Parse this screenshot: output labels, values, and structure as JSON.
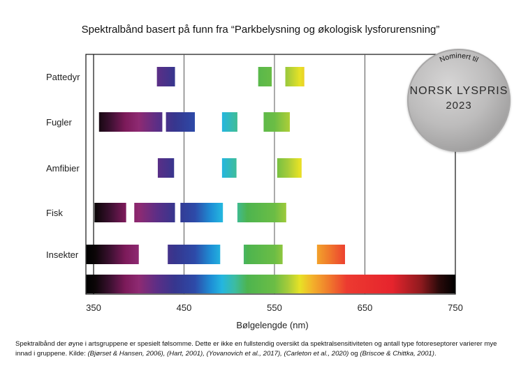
{
  "chart_data": {
    "type": "bar",
    "title": "Spektralbånd basert på funn fra “Parkbelysning og økologisk lysforurensning”",
    "xlabel": "Bølgelengde (nm)",
    "ylabel": "",
    "xlim": [
      350,
      750
    ],
    "x_ticks": [
      350,
      450,
      550,
      650,
      750
    ],
    "x_tick_labels": [
      "350",
      "450",
      "550",
      "650",
      "750"
    ],
    "grid_lines_x": [
      350,
      450,
      550,
      650
    ],
    "categories": [
      "Pattedyr",
      "Fugler",
      "Amfibier",
      "Fisk",
      "Insekter"
    ],
    "series": [
      {
        "category": "Pattedyr",
        "ranges": [
          [
            420,
            440
          ],
          [
            532,
            547
          ],
          [
            562,
            583
          ]
        ]
      },
      {
        "category": "Fugler",
        "ranges": [
          [
            356,
            426
          ],
          [
            430,
            462
          ],
          [
            492,
            509
          ],
          [
            538,
            567
          ]
        ]
      },
      {
        "category": "Amfibier",
        "ranges": [
          [
            421,
            439
          ],
          [
            492,
            508
          ],
          [
            553,
            580
          ]
        ]
      },
      {
        "category": "Fisk",
        "ranges": [
          [
            351,
            386
          ],
          [
            395,
            440
          ],
          [
            446,
            493
          ],
          [
            509,
            563
          ]
        ]
      },
      {
        "category": "Insekter",
        "ranges": [
          [
            342,
            400
          ],
          [
            432,
            490
          ],
          [
            516,
            559
          ],
          [
            597,
            628
          ]
        ]
      }
    ],
    "spectrum_bar": [
      342,
      750
    ],
    "legend": "none"
  },
  "badge": {
    "top_text": "Nominert til",
    "main_text": "NORSK LYSPRIS",
    "year_text": "2023"
  },
  "caption": {
    "line1": "Spektralbånd der øyne i artsgruppene er spesielt følsomme. Dette er ikke en fullstendig oversikt da spektralsensitiviteten og antall type fotoreseptorer varierer mye",
    "line2_prefix": "innad i gruppene. Kilde: ",
    "sources_1": "(Bjørset & Hansen, 2006), (Hart, 2001), (Yovanovich et al., 2017), (Carleton et al., 2020)",
    "sources_joiner": " og ",
    "sources_2": "(Briscoe & Chittka, 2001)",
    "end": "."
  }
}
